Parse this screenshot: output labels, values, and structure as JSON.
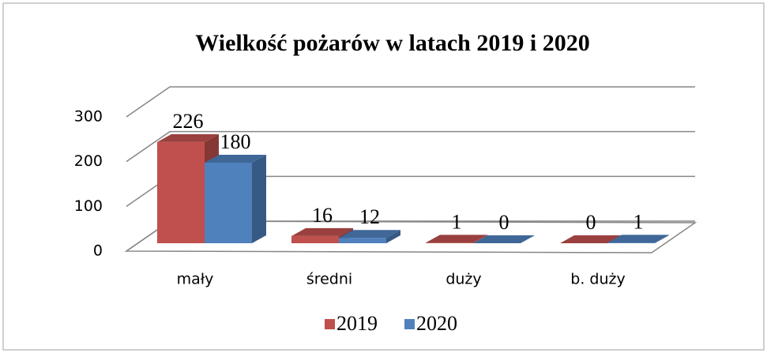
{
  "chart_data": {
    "type": "bar3d",
    "title": "Wielkość pożarów w latach 2019 i 2020",
    "categories": [
      "mały",
      "średni",
      "duży",
      "b. duży"
    ],
    "series": [
      {
        "name": "2019",
        "color": "#c0504d",
        "values": [
          226,
          16,
          1,
          0
        ]
      },
      {
        "name": "2020",
        "color": "#4f81bd",
        "values": [
          180,
          12,
          0,
          1
        ]
      }
    ],
    "ylim": [
      0,
      300
    ],
    "yticks": [
      0,
      100,
      200,
      300
    ],
    "grid": true,
    "legend": "bottom"
  }
}
